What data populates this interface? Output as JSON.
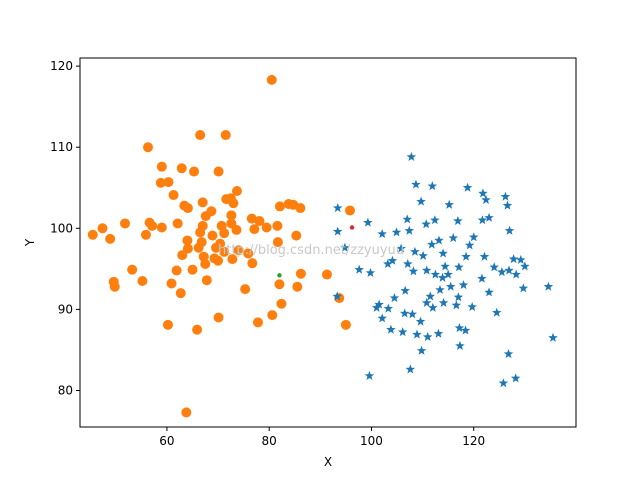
{
  "chart_data": {
    "type": "scatter",
    "xlabel": "X",
    "ylabel": "Y",
    "xlim": [
      43,
      140
    ],
    "ylim": [
      75.5,
      121
    ],
    "xticks": [
      60,
      80,
      100,
      120
    ],
    "yticks": [
      80,
      90,
      100,
      110,
      120
    ],
    "grid": false,
    "watermark": "http://blog.csdn.net/zzyuyuu",
    "colors": {
      "orange_cluster": "#ff7f0e",
      "blue_cluster": "#1f77b4",
      "green_center": "#2ca02c",
      "red_center": "#d62728"
    },
    "series": [
      {
        "marker": "circle",
        "color": "#ff7f0e",
        "points": [
          [
            80.5,
            118.3
          ],
          [
            66.5,
            111.5
          ],
          [
            71.5,
            111.5
          ],
          [
            56.3,
            110.0
          ],
          [
            59.0,
            107.6
          ],
          [
            62.9,
            107.4
          ],
          [
            65.3,
            107.0
          ],
          [
            70.1,
            107.0
          ],
          [
            58.8,
            105.6
          ],
          [
            60.3,
            105.7
          ],
          [
            73.7,
            104.6
          ],
          [
            61.3,
            104.1
          ],
          [
            72.5,
            103.7
          ],
          [
            71.6,
            103.6
          ],
          [
            67.0,
            103.2
          ],
          [
            73.0,
            103.1
          ],
          [
            63.4,
            102.8
          ],
          [
            64.1,
            102.5
          ],
          [
            68.7,
            102.1
          ],
          [
            82.1,
            102.7
          ],
          [
            84.7,
            102.9
          ],
          [
            86.1,
            102.5
          ],
          [
            95.8,
            102.2
          ],
          [
            67.6,
            101.5
          ],
          [
            72.6,
            101.6
          ],
          [
            76.6,
            101.2
          ],
          [
            78.1,
            100.9
          ],
          [
            56.6,
            100.7
          ],
          [
            51.8,
            100.6
          ],
          [
            57.1,
            100.3
          ],
          [
            59.0,
            100.1
          ],
          [
            62.1,
            100.6
          ],
          [
            67.0,
            100.3
          ],
          [
            70.7,
            100.3
          ],
          [
            72.6,
            100.6
          ],
          [
            79.5,
            100.1
          ],
          [
            81.6,
            100.3
          ],
          [
            47.4,
            100.0
          ],
          [
            45.5,
            99.2
          ],
          [
            55.9,
            99.2
          ],
          [
            66.5,
            99.5
          ],
          [
            68.9,
            99.1
          ],
          [
            71.2,
            99.4
          ],
          [
            73.6,
            99.8
          ],
          [
            77.1,
            99.9
          ],
          [
            85.3,
            99.1
          ],
          [
            48.9,
            98.7
          ],
          [
            64.0,
            98.5
          ],
          [
            66.8,
            98.3
          ],
          [
            70.4,
            98.1
          ],
          [
            81.7,
            98.3
          ],
          [
            64.1,
            97.5
          ],
          [
            66.2,
            97.6
          ],
          [
            69.6,
            97.6
          ],
          [
            71.2,
            97.1
          ],
          [
            74.0,
            97.3
          ],
          [
            75.9,
            96.9
          ],
          [
            63.0,
            96.7
          ],
          [
            67.2,
            96.5
          ],
          [
            69.3,
            96.3
          ],
          [
            70.0,
            96.0
          ],
          [
            72.8,
            96.2
          ],
          [
            76.7,
            95.7
          ],
          [
            67.5,
            95.6
          ],
          [
            65.0,
            94.9
          ],
          [
            53.2,
            94.9
          ],
          [
            61.9,
            94.8
          ],
          [
            86.2,
            94.4
          ],
          [
            91.3,
            94.3
          ],
          [
            55.2,
            93.5
          ],
          [
            49.6,
            93.4
          ],
          [
            60.9,
            93.2
          ],
          [
            67.8,
            93.6
          ],
          [
            82.0,
            93.1
          ],
          [
            49.8,
            92.8
          ],
          [
            85.5,
            92.8
          ],
          [
            75.3,
            92.5
          ],
          [
            62.7,
            92.0
          ],
          [
            93.7,
            91.4
          ],
          [
            82.4,
            90.7
          ],
          [
            80.6,
            89.3
          ],
          [
            70.1,
            89.0
          ],
          [
            60.2,
            88.1
          ],
          [
            77.8,
            88.4
          ],
          [
            95.0,
            88.1
          ],
          [
            65.9,
            87.5
          ],
          [
            63.8,
            77.3
          ],
          [
            83.8,
            103.0
          ]
        ]
      },
      {
        "marker": "star",
        "color": "#1f77b4",
        "points": [
          [
            107.8,
            108.8
          ],
          [
            108.7,
            105.4
          ],
          [
            111.9,
            105.2
          ],
          [
            118.8,
            105.0
          ],
          [
            121.8,
            104.3
          ],
          [
            126.2,
            103.9
          ],
          [
            109.7,
            103.3
          ],
          [
            115.2,
            102.9
          ],
          [
            122.4,
            103.5
          ],
          [
            126.6,
            102.8
          ],
          [
            93.4,
            102.5
          ],
          [
            99.3,
            100.7
          ],
          [
            107.0,
            101.1
          ],
          [
            112.4,
            101.0
          ],
          [
            110.7,
            100.5
          ],
          [
            116.9,
            100.9
          ],
          [
            123.0,
            101.3
          ],
          [
            121.7,
            101.0
          ],
          [
            107.4,
            99.7
          ],
          [
            104.9,
            99.5
          ],
          [
            102.1,
            99.3
          ],
          [
            93.4,
            99.6
          ],
          [
            113.2,
            98.5
          ],
          [
            116.0,
            98.8
          ],
          [
            120.0,
            98.9
          ],
          [
            127.0,
            99.7
          ],
          [
            111.8,
            98.0
          ],
          [
            119.2,
            97.9
          ],
          [
            94.8,
            97.6
          ],
          [
            105.8,
            97.5
          ],
          [
            108.5,
            97.1
          ],
          [
            110.1,
            96.6
          ],
          [
            114.0,
            96.9
          ],
          [
            118.5,
            96.5
          ],
          [
            122.1,
            96.5
          ],
          [
            127.8,
            96.2
          ],
          [
            129.2,
            96.1
          ],
          [
            104.1,
            96.0
          ],
          [
            107.1,
            95.6
          ],
          [
            103.2,
            95.6
          ],
          [
            114.4,
            95.3
          ],
          [
            117.1,
            95.2
          ],
          [
            124.0,
            95.2
          ],
          [
            126.9,
            94.8
          ],
          [
            130.0,
            95.3
          ],
          [
            97.6,
            94.9
          ],
          [
            99.8,
            94.5
          ],
          [
            108.2,
            94.7
          ],
          [
            110.8,
            94.8
          ],
          [
            112.5,
            94.3
          ],
          [
            115.0,
            94.3
          ],
          [
            113.9,
            93.9
          ],
          [
            121.6,
            93.8
          ],
          [
            125.5,
            94.6
          ],
          [
            128.3,
            94.3
          ],
          [
            115.5,
            92.8
          ],
          [
            118.0,
            93.0
          ],
          [
            106.6,
            92.3
          ],
          [
            113.4,
            92.4
          ],
          [
            129.7,
            92.6
          ],
          [
            134.6,
            92.8
          ],
          [
            104.5,
            91.4
          ],
          [
            111.5,
            91.6
          ],
          [
            117.0,
            91.5
          ],
          [
            123.0,
            92.1
          ],
          [
            93.3,
            91.6
          ],
          [
            101.5,
            90.6
          ],
          [
            103.3,
            90.1
          ],
          [
            110.8,
            90.8
          ],
          [
            114.1,
            90.8
          ],
          [
            116.6,
            90.5
          ],
          [
            119.7,
            90.3
          ],
          [
            101.0,
            90.2
          ],
          [
            106.5,
            89.5
          ],
          [
            108.0,
            89.4
          ],
          [
            112.0,
            90.2
          ],
          [
            124.5,
            89.6
          ],
          [
            102.1,
            88.9
          ],
          [
            109.6,
            88.5
          ],
          [
            103.8,
            87.5
          ],
          [
            117.2,
            87.7
          ],
          [
            118.4,
            87.4
          ],
          [
            106.1,
            87.2
          ],
          [
            108.9,
            86.9
          ],
          [
            111.0,
            86.6
          ],
          [
            113.1,
            87.0
          ],
          [
            135.5,
            86.5
          ],
          [
            109.8,
            84.9
          ],
          [
            117.3,
            85.5
          ],
          [
            126.8,
            84.5
          ],
          [
            107.6,
            82.6
          ],
          [
            99.6,
            81.8
          ],
          [
            128.2,
            81.5
          ],
          [
            125.8,
            80.9
          ]
        ]
      },
      {
        "marker": "point",
        "color": "#2ca02c",
        "points": [
          [
            82.0,
            94.2
          ]
        ]
      },
      {
        "marker": "point",
        "color": "#d62728",
        "points": [
          [
            96.2,
            100.1
          ]
        ]
      }
    ]
  }
}
